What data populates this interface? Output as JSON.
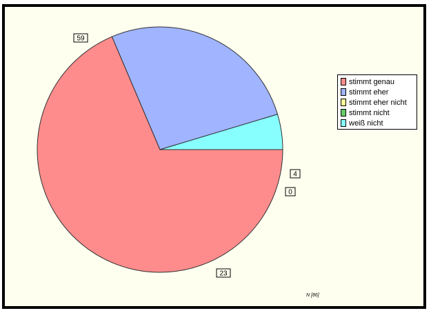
{
  "chart_data": {
    "type": "pie",
    "categories": [
      "stimmt genau",
      "stimmt eher",
      "stimmt eher nicht",
      "stimmt nicht",
      "weiß nicht"
    ],
    "values": [
      59,
      23,
      0,
      0,
      4
    ],
    "data_labels": [
      "59",
      "23",
      "",
      "0",
      "4"
    ],
    "colors": [
      "#ff8c8c",
      "#a0b4ff",
      "#ffff99",
      "#66cc66",
      "#88ffff"
    ],
    "start_angle_deg": 0,
    "direction": "clockwise",
    "legend_position": "right",
    "note": "N [86]"
  }
}
